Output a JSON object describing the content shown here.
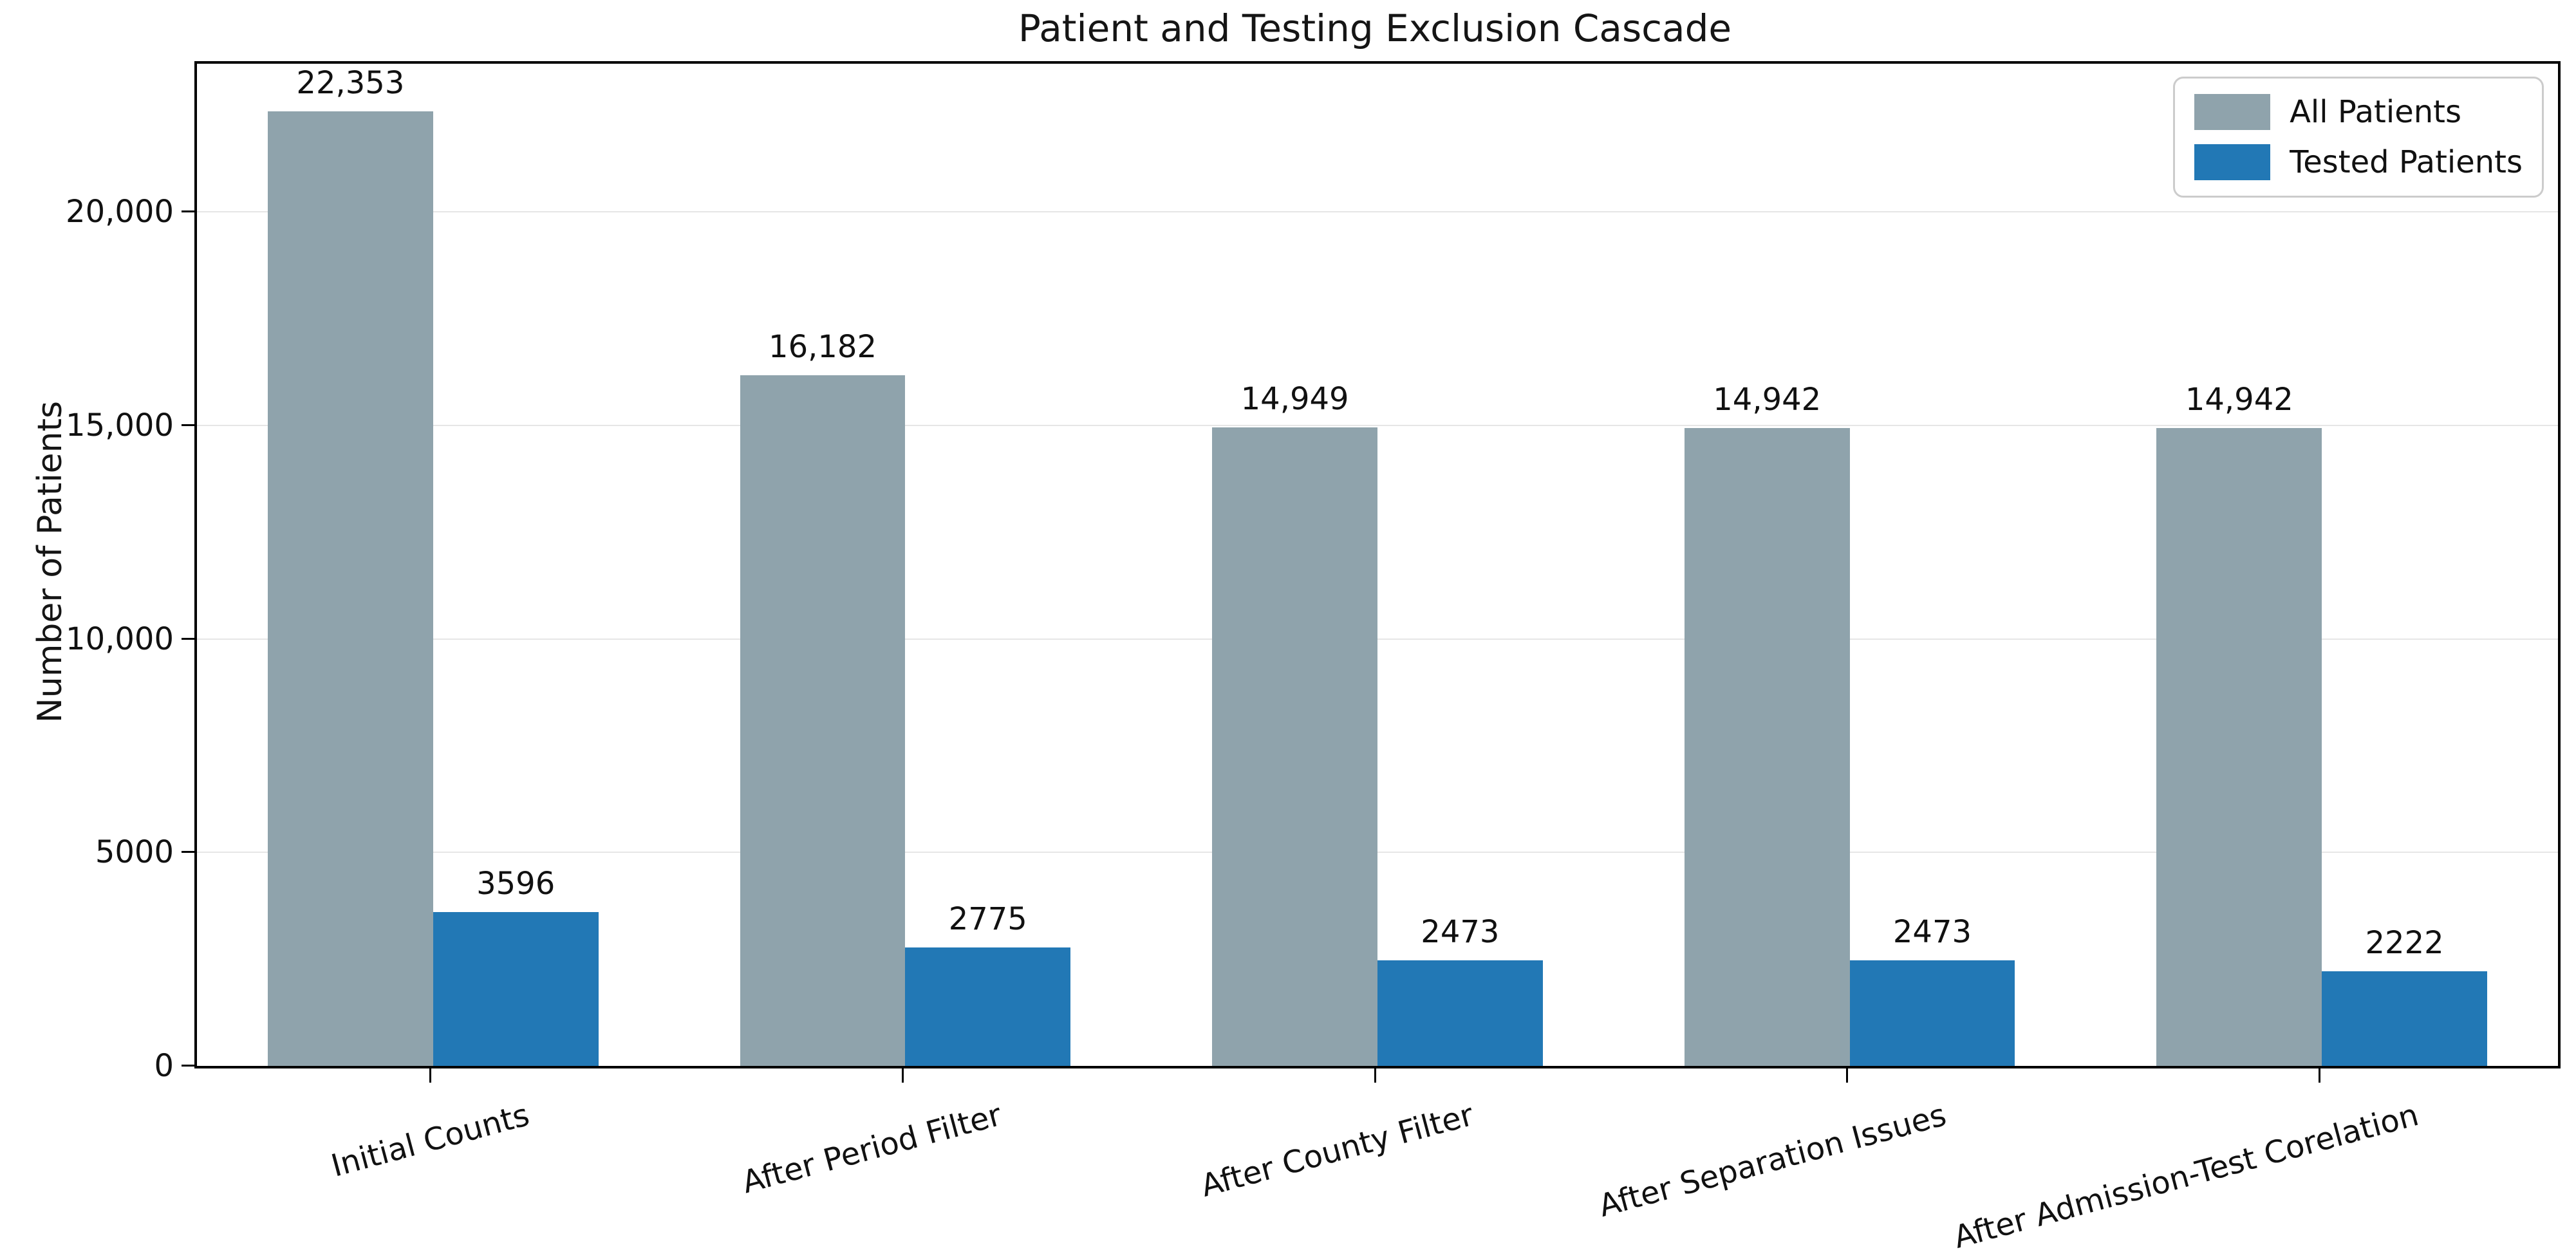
{
  "figure": {
    "title": "Patient and Testing Exclusion Cascade",
    "ylabel": "Number of Patients"
  },
  "chart_data": {
    "type": "bar",
    "title": "Patient and Testing Exclusion Cascade",
    "xlabel": "",
    "ylabel": "Number of Patients",
    "categories": [
      "Initial Counts",
      "After Period Filter",
      "After County Filter",
      "After Separation Issues",
      "After Admission-Test Corelation"
    ],
    "series": [
      {
        "name": "All Patients",
        "color": "#8fa3ac",
        "values": [
          22353,
          16182,
          14949,
          14942,
          14942
        ],
        "labels": [
          "22,353",
          "16,182",
          "14,949",
          "14,942",
          "14,942"
        ]
      },
      {
        "name": "Tested Patients",
        "color": "#2278b5",
        "values": [
          3596,
          2775,
          2473,
          2473,
          2222
        ],
        "labels": [
          "3596",
          "2775",
          "2473",
          "2473",
          "2222"
        ]
      }
    ],
    "ylim": [
      0,
      23470
    ],
    "yticks": [
      {
        "value": 0,
        "label": "0"
      },
      {
        "value": 5000,
        "label": "5000"
      },
      {
        "value": 10000,
        "label": "10,000"
      },
      {
        "value": 15000,
        "label": "15,000"
      },
      {
        "value": 20000,
        "label": "20,000"
      }
    ],
    "grid": "horizontal",
    "legend_position": "upper right",
    "bar_width_fraction": 0.35
  }
}
